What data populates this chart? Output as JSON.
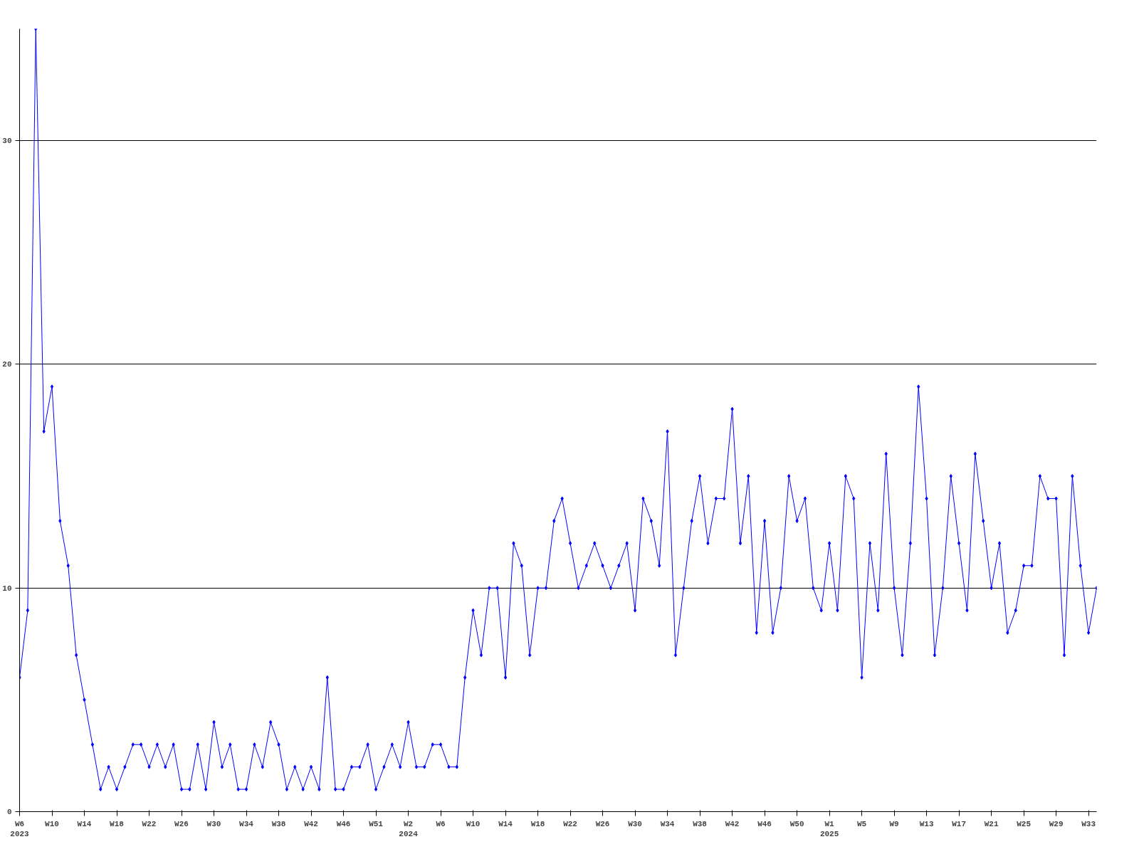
{
  "chart_data": {
    "type": "line",
    "categories": [
      "W6\n2023",
      null,
      null,
      null,
      "W10",
      null,
      null,
      null,
      "W14",
      null,
      null,
      null,
      "W18",
      null,
      null,
      null,
      "W22",
      null,
      null,
      null,
      "W26",
      null,
      null,
      null,
      "W30",
      null,
      null,
      null,
      "W34",
      null,
      null,
      null,
      "W38",
      null,
      null,
      null,
      "W42",
      null,
      null,
      null,
      "W46",
      null,
      null,
      null,
      "W51",
      null,
      null,
      null,
      "W2\n2024",
      null,
      null,
      null,
      "W6",
      null,
      null,
      null,
      "W10",
      null,
      null,
      null,
      "W14",
      null,
      null,
      null,
      "W18",
      null,
      null,
      null,
      "W22",
      null,
      null,
      null,
      "W26",
      null,
      null,
      null,
      "W30",
      null,
      null,
      null,
      "W34",
      null,
      null,
      null,
      "W38",
      null,
      null,
      null,
      "W42",
      null,
      null,
      null,
      "W46",
      null,
      null,
      null,
      "W50",
      null,
      null,
      null,
      "W1\n2025",
      null,
      null,
      null,
      "W5",
      null,
      null,
      null,
      "W9",
      null,
      null,
      null,
      "W13",
      null,
      null,
      null,
      "W17",
      null,
      null,
      null,
      "W21",
      null,
      null,
      null,
      "W25",
      null,
      null,
      null,
      "W29",
      null,
      null,
      null,
      "W33",
      null
    ],
    "series": [
      {
        "color": "#0000ff",
        "values": [
          6,
          9,
          35,
          17,
          19,
          13,
          11,
          7,
          5,
          3,
          1,
          2,
          1,
          2,
          3,
          3,
          2,
          3,
          2,
          3,
          1,
          1,
          3,
          1,
          4,
          2,
          3,
          1,
          1,
          3,
          2,
          4,
          3,
          1,
          2,
          1,
          2,
          1,
          6,
          1,
          1,
          2,
          2,
          3,
          1,
          2,
          3,
          2,
          4,
          2,
          2,
          3,
          3,
          2,
          2,
          6,
          9,
          7,
          10,
          10,
          6,
          12,
          11,
          7,
          10,
          10,
          13,
          14,
          12,
          10,
          11,
          12,
          11,
          10,
          11,
          12,
          9,
          14,
          13,
          11,
          17,
          7,
          10,
          13,
          15,
          12,
          14,
          14,
          18,
          12,
          15,
          8,
          13,
          8,
          10,
          15,
          13,
          14,
          10,
          9,
          12,
          9,
          15,
          14,
          6,
          12,
          9,
          16,
          10,
          7,
          12,
          19,
          14,
          7,
          10,
          15,
          12,
          9,
          16,
          13,
          10,
          12,
          8,
          9,
          11,
          11,
          15,
          14,
          14,
          7,
          15,
          11,
          8,
          10
        ]
      }
    ],
    "ylim": [
      0,
      35
    ],
    "yticks": [
      0,
      10,
      20,
      30
    ],
    "grid": "y",
    "marker": "diamond",
    "line_style": "solid"
  }
}
